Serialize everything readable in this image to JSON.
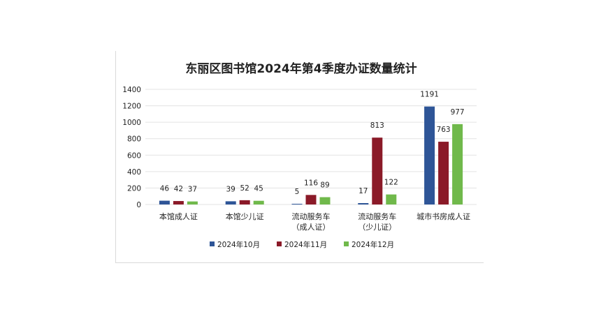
{
  "chart_data": {
    "type": "bar",
    "title": "东丽区图书馆2024年第4季度办证数量统计",
    "categories": [
      [
        "本馆成人证"
      ],
      [
        "本馆少儿证"
      ],
      [
        "流动服务车",
        "（成人证）"
      ],
      [
        "流动服务车",
        "（少儿证）"
      ],
      [
        "城市书房成人证"
      ]
    ],
    "series": [
      {
        "name": "2024年10月",
        "color": "#2e5597",
        "values": [
          46,
          39,
          5,
          17,
          1191
        ]
      },
      {
        "name": "2024年11月",
        "color": "#8b1a28",
        "values": [
          42,
          52,
          116,
          813,
          763
        ]
      },
      {
        "name": "2024年12月",
        "color": "#70b94b",
        "values": [
          37,
          45,
          89,
          122,
          977
        ]
      }
    ],
    "ylim": [
      0,
      1400
    ],
    "yticks": [
      0,
      200,
      400,
      600,
      800,
      1000,
      1200,
      1400
    ],
    "grid": true,
    "legend_position": "bottom"
  }
}
